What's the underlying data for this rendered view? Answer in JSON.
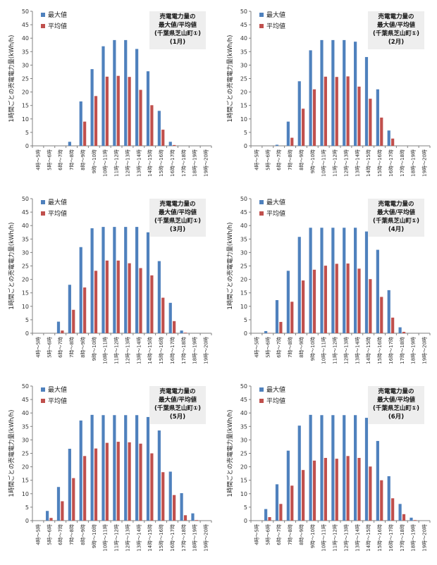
{
  "colors": {
    "max": "#4f81bd",
    "avg": "#c0504d",
    "axis": "#808080",
    "annotation_bg": "#eeeeee"
  },
  "chart_data": [
    {
      "type": "bar",
      "annotation": [
        "売電電力量の",
        "最大値/平均値",
        "(千葉県芝山町①)",
        "(1月)"
      ],
      "ylabel": "1時間ごとの売電電力量(kWh/h)",
      "ylim": [
        0,
        50
      ],
      "yticks": [
        0,
        5,
        10,
        15,
        20,
        25,
        30,
        35,
        40,
        45,
        50
      ],
      "legend": "top-left",
      "categories": [
        "4時～5時",
        "5時～6時",
        "6時～7時",
        "7時～8時",
        "8時～9時",
        "9時～10時",
        "10時～11時",
        "11時～12時",
        "12時～13時",
        "13時～14時",
        "14時～15時",
        "15時～16時",
        "16時～17時",
        "17時～18時",
        "18時～19時",
        "19時～20時"
      ],
      "series": [
        {
          "name": "最大値",
          "color": "#4f81bd",
          "values": [
            0,
            0,
            0,
            1.5,
            16.5,
            28.5,
            37,
            39.3,
            39.3,
            36,
            27.7,
            13,
            1.5,
            0,
            0,
            0
          ]
        },
        {
          "name": "平均値",
          "color": "#c0504d",
          "values": [
            0,
            0,
            0,
            0,
            9,
            18.5,
            25.7,
            26,
            25.6,
            20.8,
            15.1,
            6,
            0.3,
            0,
            0,
            0
          ]
        }
      ]
    },
    {
      "type": "bar",
      "annotation": [
        "売電電力量の",
        "最大値/平均値",
        "(千葉県芝山町①)",
        "(2月)"
      ],
      "ylabel": "1時間ごとの売電電力量(kWh/h)",
      "ylim": [
        0,
        50
      ],
      "yticks": [
        0,
        5,
        10,
        15,
        20,
        25,
        30,
        35,
        40,
        45,
        50
      ],
      "legend": "top-left",
      "categories": [
        "4時～5時",
        "5時～6時",
        "6時～7時",
        "7時～8時",
        "8時～9時",
        "9時～10時",
        "10時～11時",
        "11時～12時",
        "12時～13時",
        "13時～14時",
        "14時～15時",
        "15時～16時",
        "16時～17時",
        "17時～18時",
        "18時～19時",
        "19時～20時"
      ],
      "series": [
        {
          "name": "最大値",
          "color": "#4f81bd",
          "values": [
            0,
            0,
            0.4,
            9,
            24,
            35.5,
            39.3,
            39.3,
            39.3,
            38.7,
            33,
            21,
            5.7,
            0,
            0,
            0
          ]
        },
        {
          "name": "平均値",
          "color": "#c0504d",
          "values": [
            0,
            0,
            0,
            3,
            13.8,
            21,
            25.7,
            25.6,
            25.8,
            22,
            17.5,
            10.5,
            2.7,
            0,
            0,
            0
          ]
        }
      ]
    },
    {
      "type": "bar",
      "annotation": [
        "売電電力量の",
        "最大値/平均値",
        "(千葉県芝山町①)",
        "(3月)"
      ],
      "ylabel": "1時間ごとの売電電力量(kWh/h)",
      "ylim": [
        0,
        50
      ],
      "yticks": [
        0,
        5,
        10,
        15,
        20,
        25,
        30,
        35,
        40,
        45,
        50
      ],
      "legend": "top-left",
      "categories": [
        "4時～5時",
        "5時～6時",
        "6時～7時",
        "7時～8時",
        "8時～9時",
        "9時～10時",
        "10時～11時",
        "11時～12時",
        "12時～13時",
        "13時～14時",
        "14時～15時",
        "15時～16時",
        "16時～17時",
        "17時～18時",
        "18時～19時",
        "19時～20時"
      ],
      "series": [
        {
          "name": "最大値",
          "color": "#4f81bd",
          "values": [
            0,
            0,
            4.3,
            18,
            32,
            39,
            39.5,
            39.5,
            39.5,
            39.5,
            37.5,
            26.8,
            11.3,
            1,
            0,
            0
          ]
        },
        {
          "name": "平均値",
          "color": "#c0504d",
          "values": [
            0,
            0,
            1,
            8.7,
            17,
            23.2,
            27,
            27,
            26,
            24.2,
            21.5,
            13.2,
            4.5,
            0.2,
            0,
            0
          ]
        }
      ]
    },
    {
      "type": "bar",
      "annotation": [
        "売電電力量の",
        "最大値/平均値",
        "(千葉県芝山町①)",
        "(4月)"
      ],
      "ylabel": "1時間ごとの売電電力量(kWh/h)",
      "ylim": [
        0,
        50
      ],
      "yticks": [
        0,
        5,
        10,
        15,
        20,
        25,
        30,
        35,
        40,
        45,
        50
      ],
      "legend": "top-left",
      "categories": [
        "4時～5時",
        "5時～6時",
        "6時～7時",
        "7時～8時",
        "8時～9時",
        "9時～10時",
        "10時～11時",
        "11時～12時",
        "12時～13時",
        "13時～14時",
        "14時～15時",
        "15時～16時",
        "16時～17時",
        "17時～18時",
        "18時～19時",
        "19時～20時"
      ],
      "series": [
        {
          "name": "最大値",
          "color": "#4f81bd",
          "values": [
            0,
            0.8,
            12.3,
            23.2,
            35.8,
            39.2,
            39.2,
            39.2,
            39.2,
            39.2,
            37.8,
            31,
            16,
            2.2,
            0,
            0
          ]
        },
        {
          "name": "平均値",
          "color": "#c0504d",
          "values": [
            0,
            0.1,
            4.2,
            11.7,
            19.6,
            23.6,
            25.1,
            25.8,
            25.9,
            24,
            20.1,
            13.5,
            5.8,
            0.5,
            0,
            0
          ]
        }
      ]
    },
    {
      "type": "bar",
      "annotation": [
        "売電電力量の",
        "最大値/平均値",
        "(千葉県芝山町①)",
        "(5月)"
      ],
      "ylabel": "1時間ごとの売電電力量(kWh/h)",
      "ylim": [
        0,
        50
      ],
      "yticks": [
        0,
        5,
        10,
        15,
        20,
        25,
        30,
        35,
        40,
        45,
        50
      ],
      "legend": "top-left",
      "categories": [
        "4時～5時",
        "5時～6時",
        "6時～7時",
        "7時～8時",
        "8時～9時",
        "9時～10時",
        "10時～11時",
        "11時～12時",
        "12時～13時",
        "13時～14時",
        "14時～15時",
        "15時～16時",
        "16時～17時",
        "17時～18時",
        "18時～19時",
        "19時～20時"
      ],
      "series": [
        {
          "name": "最大値",
          "color": "#4f81bd",
          "values": [
            0,
            3.6,
            12.5,
            26.7,
            37.2,
            39.3,
            39.2,
            39.2,
            39.2,
            39.2,
            38.5,
            33.5,
            18.2,
            10.2,
            2.7,
            0
          ]
        },
        {
          "name": "平均値",
          "color": "#c0504d",
          "values": [
            0,
            1,
            7.2,
            15.8,
            24,
            26.8,
            28.9,
            29.3,
            29.1,
            28.6,
            25,
            18,
            9.5,
            2,
            0.2,
            0
          ]
        }
      ]
    },
    {
      "type": "bar",
      "annotation": [
        "売電電力量の",
        "最大値/平均値",
        "(千葉県芝山町①)",
        "(6月)"
      ],
      "ylabel": "1時間ごとの売電電力量(kWh/h)",
      "ylim": [
        0,
        50
      ],
      "yticks": [
        0,
        5,
        10,
        15,
        20,
        25,
        30,
        35,
        40,
        45,
        50
      ],
      "legend": "top-left",
      "categories": [
        "4時～5時",
        "5時～6時",
        "6時～7時",
        "7時～8時",
        "8時～9時",
        "9時～10時",
        "10時～11時",
        "11時～12時",
        "12時～13時",
        "13時～14時",
        "14時～15時",
        "15時～16時",
        "16時～17時",
        "17時～18時",
        "18時～19時",
        "19時～20時"
      ],
      "series": [
        {
          "name": "最大値",
          "color": "#4f81bd",
          "values": [
            0,
            4.3,
            13.5,
            26,
            35.3,
            39.3,
            39.2,
            39.2,
            39.2,
            39.2,
            38.2,
            29.6,
            16.5,
            6.2,
            1.1,
            0
          ]
        },
        {
          "name": "平均値",
          "color": "#c0504d",
          "values": [
            0,
            1.3,
            6.2,
            13,
            18.8,
            22.3,
            23.3,
            23,
            24,
            23.3,
            20.1,
            15,
            8.3,
            2.4,
            0.2,
            0
          ]
        }
      ]
    }
  ]
}
